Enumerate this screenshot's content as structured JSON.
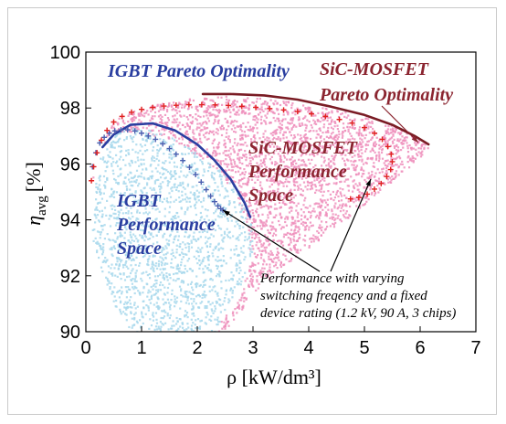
{
  "chart_data": {
    "type": "scatter",
    "xlabel": "ρ [kW/dm³]",
    "ylabel_main": "η",
    "ylabel_sub": "avg",
    "ylabel_unit": "[%]",
    "xlim": [
      0,
      7
    ],
    "ylim": [
      90,
      100
    ],
    "x_ticks": [
      "0",
      "1",
      "2",
      "3",
      "4",
      "5",
      "6",
      "7"
    ],
    "y_ticks": [
      "90",
      "92",
      "94",
      "96",
      "98",
      "100"
    ],
    "colors": {
      "igbt_cloud": "#a8d8ec",
      "sic_cloud": "#ee8fbc",
      "igbt_pareto": "#2a3ea0",
      "igbt_points": "#4a5fb0",
      "sic_pareto": "#7a1c24",
      "sic_points": "#e02020"
    },
    "regions": [
      {
        "name": "IGBT Performance Space",
        "outline": [
          [
            0.1,
            93.5
          ],
          [
            0.15,
            95.3
          ],
          [
            0.25,
            96.3
          ],
          [
            0.4,
            96.9
          ],
          [
            0.6,
            97.25
          ],
          [
            0.85,
            97.35
          ],
          [
            1.2,
            97.2
          ],
          [
            1.6,
            96.9
          ],
          [
            2.0,
            96.4
          ],
          [
            2.4,
            95.8
          ],
          [
            2.75,
            95.0
          ],
          [
            2.95,
            94.0
          ],
          [
            3.0,
            93.0
          ],
          [
            2.85,
            92.0
          ],
          [
            2.55,
            91.0
          ],
          [
            2.3,
            90.0
          ],
          [
            0.8,
            90.0
          ],
          [
            0.5,
            91.0
          ],
          [
            0.3,
            92.0
          ],
          [
            0.15,
            92.8
          ]
        ]
      },
      {
        "name": "SiC-MOSFET Performance Space",
        "outline": [
          [
            0.1,
            95.4
          ],
          [
            0.25,
            96.6
          ],
          [
            0.5,
            97.6
          ],
          [
            0.9,
            98.0
          ],
          [
            1.4,
            98.2
          ],
          [
            2.0,
            98.4
          ],
          [
            2.5,
            98.45
          ],
          [
            3.0,
            98.4
          ],
          [
            3.5,
            98.3
          ],
          [
            4.0,
            98.15
          ],
          [
            4.5,
            97.95
          ],
          [
            5.0,
            97.7
          ],
          [
            5.5,
            97.4
          ],
          [
            6.0,
            96.9
          ],
          [
            6.15,
            96.6
          ],
          [
            5.8,
            95.9
          ],
          [
            5.3,
            95.1
          ],
          [
            4.7,
            94.1
          ],
          [
            4.1,
            93.2
          ],
          [
            3.5,
            92.3
          ],
          [
            3.0,
            91.4
          ],
          [
            2.6,
            90.3
          ],
          [
            2.4,
            90.0
          ],
          [
            2.2,
            90.0
          ],
          [
            2.7,
            91.0
          ],
          [
            2.95,
            92.5
          ],
          [
            2.9,
            93.8
          ],
          [
            2.6,
            95.2
          ],
          [
            2.1,
            96.2
          ],
          [
            1.5,
            96.9
          ],
          [
            0.9,
            97.2
          ],
          [
            0.5,
            97.1
          ],
          [
            0.25,
            96.5
          ]
        ]
      }
    ],
    "series": [
      {
        "name": "IGBT Pareto Optimality",
        "type": "line",
        "x": [
          0.3,
          0.5,
          0.8,
          1.2,
          1.6,
          2.0,
          2.3,
          2.6,
          2.85,
          2.95
        ],
        "y": [
          96.6,
          97.05,
          97.4,
          97.45,
          97.2,
          96.7,
          96.15,
          95.45,
          94.6,
          94.1
        ]
      },
      {
        "name": "IGBT fixed-rating points",
        "type": "scatter",
        "x": [
          0.12,
          0.18,
          0.25,
          0.33,
          0.42,
          0.52,
          0.63,
          0.75,
          0.88,
          1.0,
          1.12,
          1.25,
          1.38,
          1.5,
          1.62,
          1.74,
          1.86,
          1.97,
          2.07,
          2.16,
          2.24,
          2.31,
          2.37,
          2.42,
          2.46
        ],
        "y": [
          95.9,
          96.4,
          96.75,
          96.95,
          97.1,
          97.18,
          97.22,
          97.22,
          97.18,
          97.1,
          97.0,
          96.88,
          96.72,
          96.55,
          96.35,
          96.12,
          95.88,
          95.62,
          95.35,
          95.08,
          94.85,
          94.65,
          94.5,
          94.4,
          94.35
        ]
      },
      {
        "name": "SiC-MOSFET Pareto Optimality",
        "type": "line",
        "x": [
          2.1,
          2.6,
          3.2,
          3.8,
          4.4,
          5.0,
          5.5,
          5.9,
          6.15
        ],
        "y": [
          98.5,
          98.5,
          98.45,
          98.3,
          98.05,
          97.75,
          97.4,
          97.0,
          96.7
        ]
      },
      {
        "name": "SiC-MOSFET fixed-rating points",
        "type": "scatter",
        "x": [
          0.1,
          0.14,
          0.2,
          0.28,
          0.38,
          0.5,
          0.65,
          0.82,
          1.0,
          1.2,
          1.4,
          1.62,
          1.85,
          2.08,
          2.32,
          2.56,
          2.8,
          3.05,
          3.3,
          3.55,
          3.8,
          4.05,
          4.3,
          4.55,
          4.78,
          5.0,
          5.18,
          5.32,
          5.42,
          5.48,
          5.5,
          5.47,
          5.4,
          5.3,
          5.18,
          5.05,
          4.9,
          4.75
        ],
        "y": [
          95.4,
          95.9,
          96.4,
          96.85,
          97.2,
          97.5,
          97.7,
          97.85,
          97.95,
          98.02,
          98.07,
          98.1,
          98.12,
          98.12,
          98.11,
          98.09,
          98.06,
          98.02,
          97.98,
          97.93,
          97.87,
          97.79,
          97.7,
          97.59,
          97.46,
          97.3,
          97.1,
          96.88,
          96.62,
          96.35,
          96.08,
          95.8,
          95.55,
          95.3,
          95.1,
          94.92,
          94.8,
          94.75
        ]
      }
    ],
    "annotations": {
      "igbt_pareto_label": "IGBT Pareto Optimality",
      "sic_pareto_label_1": "SiC-MOSFET",
      "sic_pareto_label_2": "Pareto Optimality",
      "sic_space_label_1": "SiC-MOSFET",
      "sic_space_label_2": "Performance",
      "sic_space_label_3": "Space",
      "igbt_space_label_1": "IGBT",
      "igbt_space_label_2": "Performance",
      "igbt_space_label_3": "Space",
      "note_line_1": "Performance with varying",
      "note_line_2": "switching freqency and a fixed",
      "note_line_3": "device rating (1.2 kV, 90 A, 3 chips)"
    }
  }
}
